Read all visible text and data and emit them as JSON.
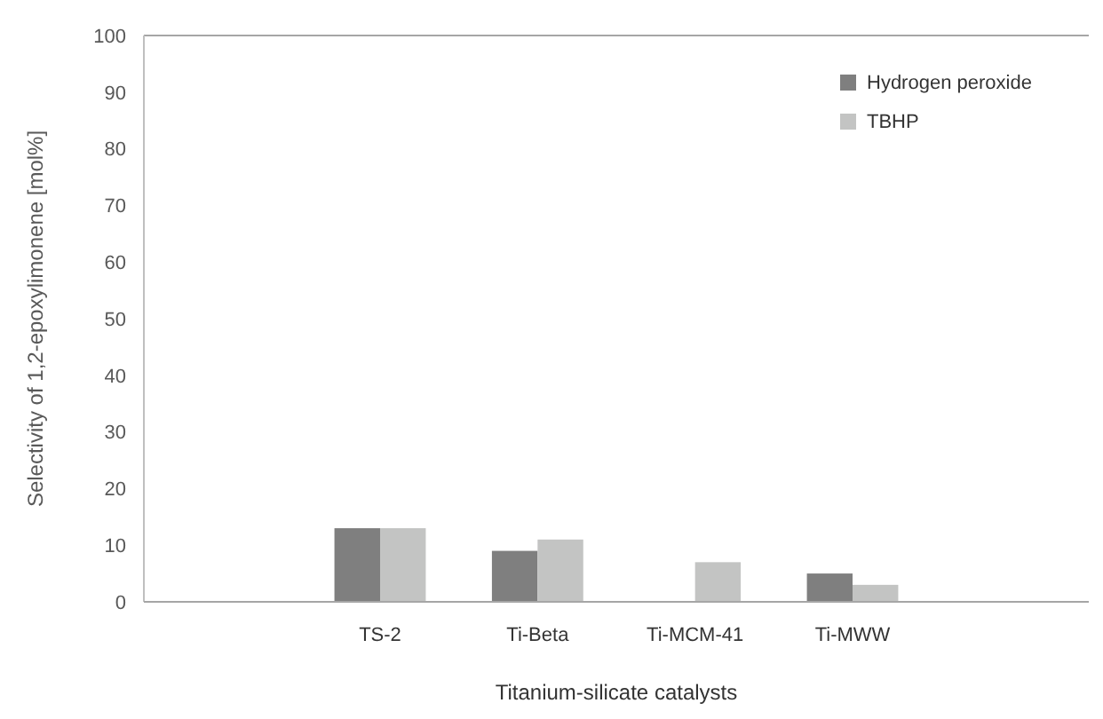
{
  "chart_data": {
    "type": "bar",
    "xlabel": "Titanium-silicate catalysts",
    "ylabel": "Selectivity of 1,2-epoxylimonene [mol%]",
    "categories": [
      null,
      "TS-2",
      "Ti-Beta",
      "Ti-MCM-41",
      "Ti-MWW",
      null
    ],
    "series": [
      {
        "name": "Hydrogen peroxide",
        "color": "#7f7f7f",
        "values": [
          null,
          13,
          9,
          null,
          5,
          null
        ]
      },
      {
        "name": "TBHP",
        "color": "#c3c4c3",
        "values": [
          null,
          13,
          11,
          7,
          3,
          null
        ]
      }
    ],
    "ylim": [
      0,
      100
    ],
    "yticks": [
      0,
      10,
      20,
      30,
      40,
      50,
      60,
      70,
      80,
      90,
      100
    ],
    "grid": false,
    "legend": "top right"
  }
}
